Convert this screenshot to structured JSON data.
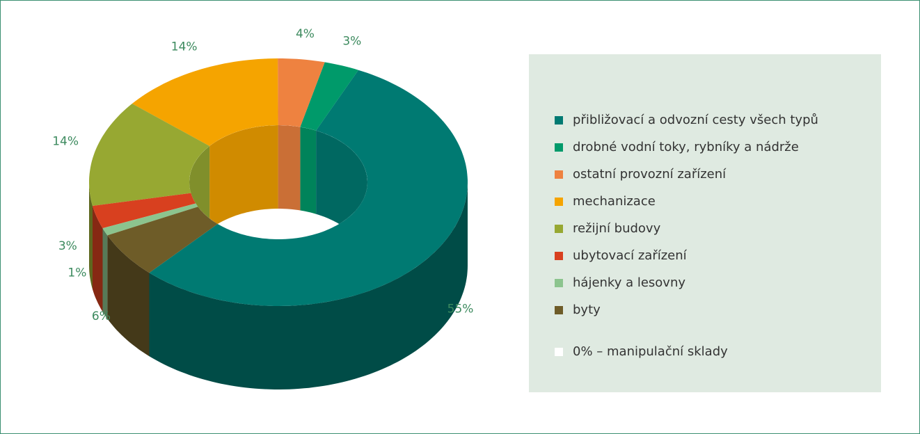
{
  "chart_data": {
    "type": "pie",
    "donut": true,
    "categories": [
      "přibližovací a odvozní cesty všech typů",
      "drobné vodní toky, rybníky a nádrže",
      "ostatní provozní zařízení",
      "mechanizace",
      "režijní budovy",
      "ubytovací zařízení",
      "hájenky a lesovny",
      "byty"
    ],
    "values": [
      55,
      3,
      4,
      14,
      14,
      3,
      1,
      6
    ],
    "value_labels": [
      "55%",
      "3%",
      "4%",
      "14%",
      "14%",
      "3%",
      "1%",
      "6%"
    ],
    "colors": [
      "#007a72",
      "#009a6a",
      "#ee8240",
      "#f5a400",
      "#97a832",
      "#d8401f",
      "#8cc48e",
      "#6e5c28"
    ],
    "legend_note": "0% – manipulační sklady",
    "legend_note_color": "#ffffff"
  }
}
